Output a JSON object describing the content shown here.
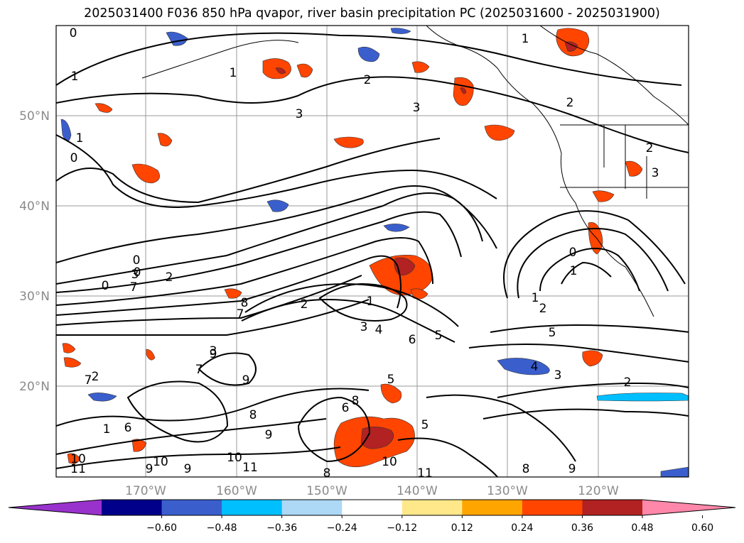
{
  "title": "2025031400 F036 850 hPa qvapor, river basin precipitation PC (2025031600 - 2025031900)",
  "lat_labels": [
    "50°N",
    "40°N",
    "30°N",
    "20°N"
  ],
  "lon_labels": [
    "170°W",
    "160°W",
    "150°W",
    "140°W",
    "130°W",
    "120°W"
  ],
  "contour_labels": [
    "0",
    "1",
    "1",
    "2",
    "3",
    "1",
    "2",
    "1",
    "0",
    "3",
    "3",
    "2",
    "7",
    "2",
    "1",
    "0",
    "3",
    "0",
    "2",
    "7",
    "8",
    "2",
    "1",
    "3",
    "4",
    "6",
    "5",
    "1",
    "2",
    "3",
    "0",
    "0",
    "5",
    "4",
    "3",
    "2",
    "9",
    "9",
    "7",
    "7",
    "8",
    "9",
    "10",
    "10",
    "11",
    "9",
    "10",
    "11",
    "9",
    "8",
    "8",
    "10",
    "11",
    "8",
    "9",
    "5",
    "6",
    "6",
    "5",
    "1"
  ],
  "colorbar": {
    "ticks": [
      "−0.60",
      "−0.48",
      "−0.36",
      "−0.24",
      "−0.12",
      "0.12",
      "0.24",
      "0.36",
      "0.48",
      "0.60"
    ],
    "colors": [
      "#9932cc",
      "#00008b",
      "#3a5fcd",
      "#00bfff",
      "#add8f6",
      "#ffffff",
      "#ffe88a",
      "#ffa500",
      "#ff4500",
      "#b22222",
      "#ff88aa"
    ]
  }
}
